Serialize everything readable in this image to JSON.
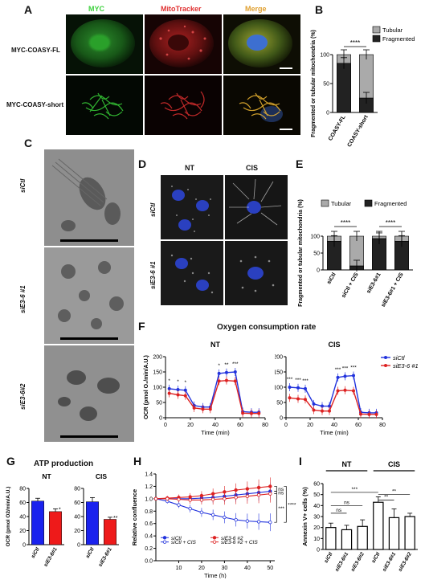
{
  "panels": {
    "A": {
      "letter": "A",
      "col_headers": [
        "MYC",
        "MitoTracker",
        "Merge"
      ],
      "col_colors": [
        "#3fd13f",
        "#e03030",
        "#e0a030"
      ],
      "row_labels": [
        "MYC-COASY-FL",
        "MYC-COASY-short"
      ]
    },
    "B": {
      "letter": "B"
    },
    "C": {
      "letter": "C",
      "row_labels": [
        "siCtl",
        "siE3-6 #1",
        "siE3-6#2"
      ]
    },
    "D": {
      "letter": "D",
      "col_headers": [
        "NT",
        "CIS"
      ],
      "row_labels": [
        "siCtl",
        "siE3-6 #1"
      ]
    },
    "E": {
      "letter": "E"
    },
    "F": {
      "letter": "F",
      "title": "Oxygen consumption rate"
    },
    "G": {
      "letter": "G",
      "title": "ATP production"
    },
    "H": {
      "letter": "H"
    },
    "I": {
      "letter": "I"
    }
  },
  "chart_data": [
    {
      "id": "B",
      "type": "bar",
      "stacked": true,
      "categories": [
        "COASY-FL",
        "COASY-short"
      ],
      "series": [
        {
          "name": "Fragmented",
          "values": [
            85,
            25
          ],
          "color": "#222222"
        },
        {
          "name": "Tubular",
          "values": [
            15,
            75
          ],
          "color": "#aaaaaa"
        }
      ],
      "errors": [
        [
          8,
          8
        ],
        [
          8,
          8
        ]
      ],
      "ylabel": "Fragmented or tubular mitochondria (%)",
      "yticks": [
        0,
        50,
        100
      ],
      "ylim": [
        0,
        100
      ],
      "legend": "top-right",
      "significance": [
        {
          "from": 0,
          "to": 1,
          "label": "****"
        }
      ]
    },
    {
      "id": "E",
      "type": "bar",
      "stacked": true,
      "categories": [
        "siCtl",
        "siCtl + CIS",
        "siE3-6#1",
        "siE3-6#1 + CIS"
      ],
      "series": [
        {
          "name": "Fragmented",
          "values": [
            85,
            12,
            93,
            85
          ],
          "color": "#222222"
        },
        {
          "name": "Tubular",
          "values": [
            15,
            88,
            7,
            15
          ],
          "color": "#aaaaaa"
        }
      ],
      "ylabel": "Fragmented or tubular mitochondria (%)",
      "yticks": [
        0,
        50,
        100
      ],
      "ylim": [
        0,
        100
      ],
      "legend": "top",
      "significance": [
        {
          "from": 0,
          "to": 1,
          "label": "****"
        },
        {
          "from": 2,
          "to": 3,
          "label": "****"
        }
      ]
    },
    {
      "id": "F_NT",
      "type": "line",
      "subtitle": "NT",
      "x": [
        3,
        10,
        16,
        23,
        30,
        36,
        43,
        49,
        56,
        62,
        69,
        75
      ],
      "series": [
        {
          "name": "siCtl",
          "values": [
            95,
            92,
            90,
            40,
            35,
            35,
            145,
            148,
            150,
            20,
            18,
            18
          ],
          "color": "#2233dd"
        },
        {
          "name": "siE3-6 #1",
          "values": [
            80,
            75,
            72,
            32,
            28,
            28,
            120,
            122,
            120,
            15,
            14,
            14
          ],
          "color": "#dd2222"
        }
      ],
      "xlabel": "Time (min)",
      "ylabel": "OCR (pmol O₂/min/A.U.)",
      "xticks": [
        0,
        20,
        40,
        60,
        80
      ],
      "yticks": [
        0,
        50,
        100,
        150,
        200
      ],
      "xlim": [
        0,
        80
      ],
      "ylim": [
        0,
        200
      ],
      "stars": [
        "*",
        "*",
        "*",
        "",
        "",
        "",
        "*",
        "**",
        "***",
        "",
        "",
        ""
      ]
    },
    {
      "id": "F_CIS",
      "type": "line",
      "subtitle": "CIS",
      "x": [
        3,
        10,
        16,
        23,
        30,
        36,
        43,
        49,
        56,
        62,
        69,
        75
      ],
      "series": [
        {
          "name": "siCtl",
          "values": [
            100,
            98,
            95,
            45,
            38,
            38,
            132,
            136,
            138,
            18,
            16,
            16
          ],
          "color": "#2233dd"
        },
        {
          "name": "siE3-6 #1",
          "values": [
            65,
            62,
            60,
            25,
            22,
            22,
            88,
            90,
            88,
            12,
            11,
            11
          ],
          "color": "#dd2222"
        }
      ],
      "xlabel": "Time (min)",
      "xticks": [
        0,
        20,
        40,
        60,
        80
      ],
      "yticks": [
        0,
        50,
        100,
        150,
        200
      ],
      "xlim": [
        0,
        80
      ],
      "ylim": [
        0,
        200
      ],
      "stars": [
        "***",
        "***",
        "***",
        "",
        "",
        "",
        "***",
        "***",
        "***",
        "",
        "",
        ""
      ],
      "legend": [
        {
          "name": "siCtl",
          "color": "#2233dd"
        },
        {
          "name": "siE3-6 #1",
          "color": "#dd2222"
        }
      ]
    },
    {
      "id": "G_NT",
      "type": "bar",
      "subtitle": "NT",
      "categories": [
        "siCtl",
        "siE3-6#1"
      ],
      "values": [
        62,
        47
      ],
      "errors": [
        4,
        4
      ],
      "colors": [
        "#1a22ee",
        "#ee1a1a"
      ],
      "ylabel": "OCR (pmol O2/min/A.U.)",
      "yticks": [
        0,
        20,
        40,
        60,
        80
      ],
      "ylim": [
        0,
        80
      ],
      "stars": [
        "",
        "*"
      ]
    },
    {
      "id": "G_CIS",
      "type": "bar",
      "subtitle": "CIS",
      "categories": [
        "siCtl",
        "siE3-6#1"
      ],
      "values": [
        61,
        36
      ],
      "errors": [
        6,
        3
      ],
      "colors": [
        "#1a22ee",
        "#ee1a1a"
      ],
      "yticks": [
        0,
        20,
        40,
        60,
        80
      ],
      "ylim": [
        0,
        80
      ],
      "stars": [
        "",
        "**"
      ]
    },
    {
      "id": "H",
      "type": "line",
      "x": [
        0,
        5,
        10,
        15,
        20,
        25,
        30,
        35,
        40,
        45,
        50
      ],
      "series": [
        {
          "name": "siCtl",
          "values": [
            1.0,
            1.0,
            1.0,
            1.0,
            1.01,
            1.02,
            1.04,
            1.06,
            1.08,
            1.1,
            1.12
          ],
          "color": "#2233dd",
          "filled": true
        },
        {
          "name": "siCtl + CIS",
          "values": [
            1.0,
            0.96,
            0.9,
            0.84,
            0.78,
            0.74,
            0.7,
            0.66,
            0.64,
            0.63,
            0.62
          ],
          "color": "#2233dd",
          "filled": false
        },
        {
          "name": "siE3-6 #2",
          "values": [
            1.0,
            1.01,
            1.02,
            1.03,
            1.05,
            1.08,
            1.11,
            1.14,
            1.16,
            1.18,
            1.2
          ],
          "color": "#dd2222",
          "filled": true
        },
        {
          "name": "siE3-6 #2 + CIS",
          "values": [
            1.0,
            1.0,
            0.99,
            0.98,
            0.98,
            0.99,
            1.0,
            1.02,
            1.04,
            1.06,
            1.08
          ],
          "color": "#dd2222",
          "filled": false
        }
      ],
      "xlabel": "Time (h)",
      "ylabel": "Relative confluence",
      "xticks": [
        10,
        20,
        30,
        40,
        50
      ],
      "yticks": [
        0.0,
        0.2,
        0.4,
        0.6,
        0.8,
        1.0,
        1.2,
        1.4
      ],
      "xlim": [
        0,
        52
      ],
      "ylim": [
        0,
        1.4
      ],
      "annotations": [
        "ns",
        "ns",
        "***",
        "****"
      ]
    },
    {
      "id": "I",
      "type": "bar",
      "groups": [
        "NT",
        "CIS"
      ],
      "categories": [
        "siCtl",
        "siE3-6#1",
        "siE3-6#2",
        "siCtl",
        "siE3-6#1",
        "siE3-6#2"
      ],
      "values": [
        20,
        18,
        21,
        43,
        29,
        30
      ],
      "errors": [
        4,
        4,
        6,
        5,
        8,
        3
      ],
      "ylabel": "Annexin V+ cells (%)",
      "yticks": [
        0,
        10,
        20,
        30,
        40,
        50,
        60
      ],
      "ylim": [
        0,
        60
      ],
      "significance": [
        {
          "from": 0,
          "to": 1,
          "label": "ns"
        },
        {
          "from": 0,
          "to": 2,
          "label": "ns"
        },
        {
          "from": 0,
          "to": 3,
          "label": "***"
        },
        {
          "from": 3,
          "to": 4,
          "label": "**"
        },
        {
          "from": 3,
          "to": 5,
          "label": "**"
        }
      ]
    }
  ]
}
